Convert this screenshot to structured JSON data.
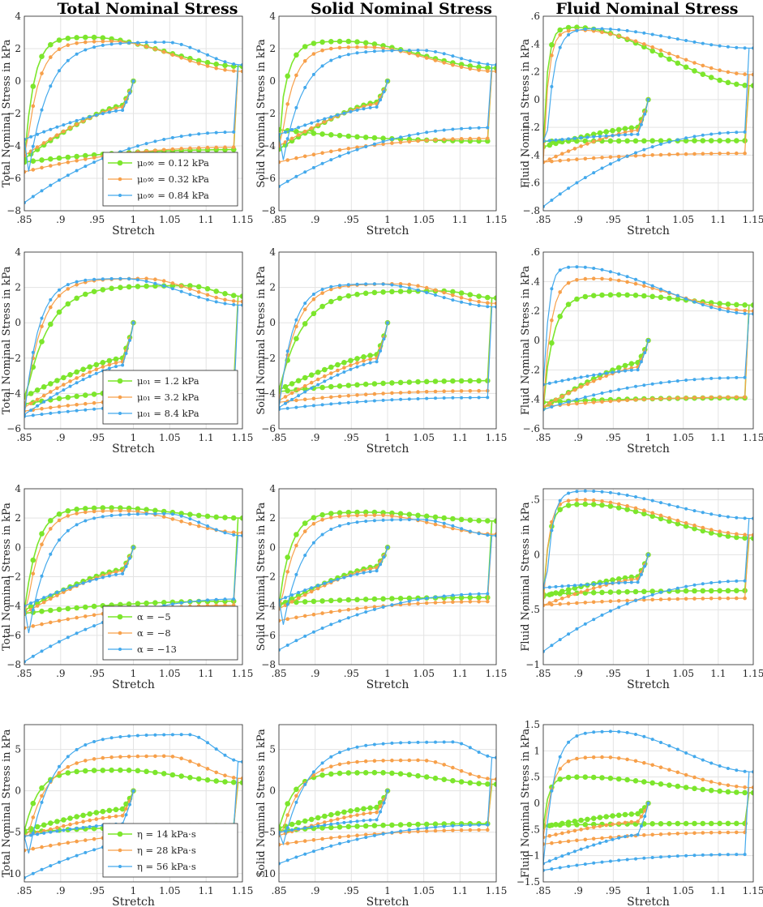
{
  "column_titles": [
    "Total Nominal Stress",
    "Solid Nominal Stress",
    "Fluid Nominal Stress"
  ],
  "colors": {
    "green": "#7ce62c",
    "orange": "#f7a04a",
    "blue": "#43a9ec",
    "grid": "#e3e3e3",
    "axis": "#262626"
  },
  "chart_data": [
    {
      "type": "line",
      "row": 0,
      "col": 0,
      "xlabel": "Stretch",
      "ylabel": "Total Nominal Stress in kPa",
      "xlim": [
        0.85,
        1.15
      ],
      "ylim": [
        -8,
        4
      ],
      "yticks": [
        -8,
        -6,
        -4,
        -2,
        0,
        2,
        4
      ],
      "xticks": [
        0.85,
        0.9,
        0.95,
        1,
        1.05,
        1.1,
        1.15
      ],
      "legend": [
        "μ₀∞ = 0.12 kPa",
        "μ₀∞ = 0.32 kPa",
        "μ₀∞ = 0.84 kPa"
      ],
      "series": [
        {
          "name": "0.12",
          "init": -1.5,
          "peak": 2.7,
          "pk": 0.3,
          "base": 0.9,
          "load_min": -4.8,
          "unload_min": -5.0
        },
        {
          "name": "0.32",
          "init": -1.6,
          "peak": 2.45,
          "pk": 0.4,
          "base": 0.6,
          "load_min": -4.6,
          "unload_min": -5.6
        },
        {
          "name": "0.84",
          "init": -1.8,
          "peak": 2.4,
          "pk": 0.65,
          "base": 1.0,
          "load_min": -3.6,
          "unload_min": -7.5
        }
      ]
    },
    {
      "type": "line",
      "row": 0,
      "col": 1,
      "xlabel": "Stretch",
      "ylabel": "Solid Nominal Stress in kPa",
      "xlim": [
        0.85,
        1.15
      ],
      "ylim": [
        -8,
        4
      ],
      "yticks": [
        -8,
        -6,
        -4,
        -2,
        0,
        2,
        4
      ],
      "xticks": [
        0.85,
        0.9,
        0.95,
        1,
        1.05,
        1.1,
        1.15
      ],
      "legend": [],
      "series": [
        {
          "name": "0.12",
          "init": -1.3,
          "peak": 2.45,
          "pk": 0.3,
          "base": 0.8,
          "load_min": -4.2,
          "unload_min": -3.0
        },
        {
          "name": "0.32",
          "init": -1.4,
          "peak": 2.1,
          "pk": 0.4,
          "base": 0.6,
          "load_min": -4.0,
          "unload_min": -5.0
        },
        {
          "name": "0.84",
          "init": -1.6,
          "peak": 1.9,
          "pk": 0.65,
          "base": 1.0,
          "load_min": -3.3,
          "unload_min": -6.5
        }
      ]
    },
    {
      "type": "line",
      "row": 0,
      "col": 2,
      "xlabel": "Stretch",
      "ylabel": "Fluid Nominal Stress in kPa",
      "xlim": [
        0.85,
        1.15
      ],
      "ylim": [
        -0.8,
        0.6
      ],
      "yticks": [
        -0.8,
        -0.6,
        -0.4,
        -0.2,
        0,
        0.2,
        0.4,
        0.6
      ],
      "xticks": [
        0.85,
        0.9,
        0.95,
        1,
        1.05,
        1.1,
        1.15
      ],
      "legend": [],
      "series": [
        {
          "name": "0.12",
          "init": -0.2,
          "peak": 0.52,
          "pk": 0.15,
          "base": 0.1,
          "load_min": -0.34,
          "unload_min": -0.3
        },
        {
          "name": "0.32",
          "init": -0.22,
          "peak": 0.5,
          "pk": 0.17,
          "base": 0.18,
          "load_min": -0.45,
          "unload_min": -0.45
        },
        {
          "name": "0.84",
          "init": -0.25,
          "peak": 0.51,
          "pk": 0.25,
          "base": 0.37,
          "load_min": -0.3,
          "unload_min": -0.77
        }
      ]
    },
    {
      "type": "line",
      "row": 1,
      "col": 0,
      "xlabel": "Stretch",
      "ylabel": "Total Nominal Stress in kPa",
      "xlim": [
        0.85,
        1.15
      ],
      "ylim": [
        -6,
        4
      ],
      "yticks": [
        -6,
        -4,
        -2,
        0,
        2,
        4
      ],
      "xticks": [
        0.85,
        0.9,
        0.95,
        1,
        1.05,
        1.1,
        1.15
      ],
      "legend": [
        "μ₀₁ = 1.2 kPa",
        "μ₀₁ = 3.2 kPa",
        "μ₀₁ = 8.4 kPa"
      ],
      "series": [
        {
          "name": "1.2",
          "init": -2.0,
          "peak": 2.1,
          "pk": 0.75,
          "base": 1.5,
          "load_min": -4.2,
          "unload_min": -4.6
        },
        {
          "name": "3.2",
          "init": -2.2,
          "peak": 2.5,
          "pk": 0.55,
          "base": 1.2,
          "load_min": -4.8,
          "unload_min": -5.0
        },
        {
          "name": "8.4",
          "init": -2.4,
          "peak": 2.5,
          "pk": 0.45,
          "base": 1.0,
          "load_min": -5.2,
          "unload_min": -5.3
        }
      ]
    },
    {
      "type": "line",
      "row": 1,
      "col": 1,
      "xlabel": "Stretch",
      "ylabel": "Solid Nominal Stress in kPa",
      "xlim": [
        0.85,
        1.15
      ],
      "ylim": [
        -6,
        4
      ],
      "yticks": [
        -6,
        -4,
        -2,
        0,
        2,
        4
      ],
      "xticks": [
        0.85,
        0.9,
        0.95,
        1,
        1.05,
        1.1,
        1.15
      ],
      "legend": [],
      "series": [
        {
          "name": "1.2",
          "init": -1.8,
          "peak": 1.8,
          "pk": 0.75,
          "base": 1.4,
          "load_min": -3.8,
          "unload_min": -3.9
        },
        {
          "name": "3.2",
          "init": -2.0,
          "peak": 2.2,
          "pk": 0.55,
          "base": 1.1,
          "load_min": -4.4,
          "unload_min": -4.5
        },
        {
          "name": "8.4",
          "init": -2.2,
          "peak": 2.2,
          "pk": 0.45,
          "base": 0.9,
          "load_min": -4.8,
          "unload_min": -4.9
        }
      ]
    },
    {
      "type": "line",
      "row": 1,
      "col": 2,
      "xlabel": "Stretch",
      "ylabel": "Fluid Nominal Stress in kPa",
      "xlim": [
        0.85,
        1.15
      ],
      "ylim": [
        -0.6,
        0.6
      ],
      "yticks": [
        -0.6,
        -0.4,
        -0.2,
        0,
        0.2,
        0.4,
        0.6
      ],
      "xticks": [
        0.85,
        0.9,
        0.95,
        1,
        1.05,
        1.1,
        1.15
      ],
      "legend": [],
      "series": [
        {
          "name": "1.2",
          "init": -0.15,
          "peak": 0.31,
          "pk": 0.35,
          "base": 0.24,
          "load_min": -0.46,
          "unload_min": -0.42
        },
        {
          "name": "3.2",
          "init": -0.18,
          "peak": 0.42,
          "pk": 0.25,
          "base": 0.2,
          "load_min": -0.45,
          "unload_min": -0.45
        },
        {
          "name": "8.4",
          "init": -0.2,
          "peak": 0.5,
          "pk": 0.15,
          "base": 0.18,
          "load_min": -0.3,
          "unload_min": -0.47
        }
      ]
    },
    {
      "type": "line",
      "row": 2,
      "col": 0,
      "xlabel": "Stretch",
      "ylabel": "Total Nominal Stress in kPa",
      "xlim": [
        0.85,
        1.15
      ],
      "ylim": [
        -8,
        4
      ],
      "yticks": [
        -8,
        -6,
        -4,
        -2,
        0,
        2,
        4
      ],
      "xticks": [
        0.85,
        0.9,
        0.95,
        1,
        1.05,
        1.1,
        1.15
      ],
      "legend": [
        "α = −5",
        "α = −8",
        "α = −13"
      ],
      "series": [
        {
          "name": "-5",
          "init": -1.5,
          "peak": 2.7,
          "pk": 0.4,
          "base": 2.0,
          "load_min": -4.3,
          "unload_min": -4.5
        },
        {
          "name": "-8",
          "init": -1.6,
          "peak": 2.5,
          "pk": 0.45,
          "base": 1.0,
          "load_min": -4.5,
          "unload_min": -5.5
        },
        {
          "name": "-13",
          "init": -1.8,
          "peak": 2.3,
          "pk": 0.65,
          "base": 0.8,
          "load_min": -4.0,
          "unload_min": -7.8
        }
      ]
    },
    {
      "type": "line",
      "row": 2,
      "col": 1,
      "xlabel": "Stretch",
      "ylabel": "Solid Nominal Stress in kPa",
      "xlim": [
        0.85,
        1.15
      ],
      "ylim": [
        -8,
        4
      ],
      "yticks": [
        -8,
        -6,
        -4,
        -2,
        0,
        2,
        4
      ],
      "xticks": [
        0.85,
        0.9,
        0.95,
        1,
        1.05,
        1.1,
        1.15
      ],
      "legend": [],
      "series": [
        {
          "name": "-5",
          "init": -1.3,
          "peak": 2.4,
          "pk": 0.4,
          "base": 1.8,
          "load_min": -4.0,
          "unload_min": -3.8
        },
        {
          "name": "-8",
          "init": -1.4,
          "peak": 2.2,
          "pk": 0.45,
          "base": 0.9,
          "load_min": -4.2,
          "unload_min": -5.0
        },
        {
          "name": "-13",
          "init": -1.6,
          "peak": 1.9,
          "pk": 0.65,
          "base": 0.8,
          "load_min": -3.6,
          "unload_min": -7.0
        }
      ]
    },
    {
      "type": "line",
      "row": 2,
      "col": 2,
      "xlabel": "Stretch",
      "ylabel": "Fluid Nominal Stress in kPa",
      "xlim": [
        0.85,
        1.15
      ],
      "ylim": [
        -1,
        0.6
      ],
      "yticks": [
        -1,
        -0.5,
        0,
        0.5
      ],
      "xticks": [
        0.85,
        0.9,
        0.95,
        1,
        1.05,
        1.1,
        1.15
      ],
      "legend": [],
      "series": [
        {
          "name": "-5",
          "init": -0.2,
          "peak": 0.46,
          "pk": 0.2,
          "base": 0.15,
          "load_min": -0.38,
          "unload_min": -0.36
        },
        {
          "name": "-8",
          "init": -0.22,
          "peak": 0.5,
          "pk": 0.18,
          "base": 0.18,
          "load_min": -0.46,
          "unload_min": -0.46
        },
        {
          "name": "-13",
          "init": -0.25,
          "peak": 0.58,
          "pk": 0.2,
          "base": 0.33,
          "load_min": -0.3,
          "unload_min": -0.88
        }
      ]
    },
    {
      "type": "line",
      "row": 3,
      "col": 0,
      "xlabel": "Stretch",
      "ylabel": "Total Nominal Stress in kPa",
      "xlim": [
        0.85,
        1.15
      ],
      "ylim": [
        -11,
        8
      ],
      "yticks": [
        -10,
        -5,
        0,
        5
      ],
      "xticks": [
        0.85,
        0.9,
        0.95,
        1,
        1.05,
        1.1,
        1.15
      ],
      "legend": [
        "η = 14 kPa·s",
        "η = 28 kPa·s",
        "η = 56 kPa·s"
      ],
      "series": [
        {
          "name": "14",
          "init": -2.2,
          "peak": 2.5,
          "pk": 0.45,
          "base": 1.0,
          "load_min": -4.8,
          "unload_min": -5.0
        },
        {
          "name": "28",
          "init": -3.0,
          "peak": 4.2,
          "pk": 0.65,
          "base": 1.5,
          "load_min": -5.5,
          "unload_min": -7.2
        },
        {
          "name": "56",
          "init": -4.0,
          "peak": 6.8,
          "pk": 0.75,
          "base": 3.5,
          "load_min": -5.5,
          "unload_min": -10.5
        }
      ]
    },
    {
      "type": "line",
      "row": 3,
      "col": 1,
      "xlabel": "Stretch",
      "ylabel": "Solid Nominal Stress in kPa",
      "xlim": [
        0.85,
        1.15
      ],
      "ylim": [
        -11,
        8
      ],
      "yticks": [
        -10,
        -5,
        0,
        5
      ],
      "xticks": [
        0.85,
        0.9,
        0.95,
        1,
        1.05,
        1.1,
        1.15
      ],
      "legend": [],
      "series": [
        {
          "name": "14",
          "init": -2.0,
          "peak": 2.2,
          "pk": 0.45,
          "base": 0.8,
          "load_min": -4.5,
          "unload_min": -4.8
        },
        {
          "name": "28",
          "init": -2.6,
          "peak": 3.7,
          "pk": 0.65,
          "base": 1.4,
          "load_min": -5.4,
          "unload_min": -6.5
        },
        {
          "name": "56",
          "init": -3.5,
          "peak": 5.9,
          "pk": 0.8,
          "base": 4.0,
          "load_min": -5.0,
          "unload_min": -8.8
        }
      ]
    },
    {
      "type": "line",
      "row": 3,
      "col": 2,
      "xlabel": "Stretch",
      "ylabel": "Fluid Nominal Stress in kPa",
      "xlim": [
        0.85,
        1.15
      ],
      "ylim": [
        -1.5,
        1.5
      ],
      "yticks": [
        -1.5,
        -1,
        -0.5,
        0,
        0.5,
        1,
        1.5
      ],
      "xticks": [
        0.85,
        0.9,
        0.95,
        1,
        1.05,
        1.1,
        1.15
      ],
      "legend": [],
      "series": [
        {
          "name": "14",
          "init": -0.2,
          "peak": 0.5,
          "pk": 0.18,
          "base": 0.2,
          "load_min": -0.45,
          "unload_min": -0.42
        },
        {
          "name": "28",
          "init": -0.35,
          "peak": 0.88,
          "pk": 0.28,
          "base": 0.3,
          "load_min": -0.65,
          "unload_min": -0.78
        },
        {
          "name": "56",
          "init": -0.6,
          "peak": 1.37,
          "pk": 0.33,
          "base": 0.6,
          "load_min": -1.15,
          "unload_min": -1.28
        }
      ]
    }
  ]
}
